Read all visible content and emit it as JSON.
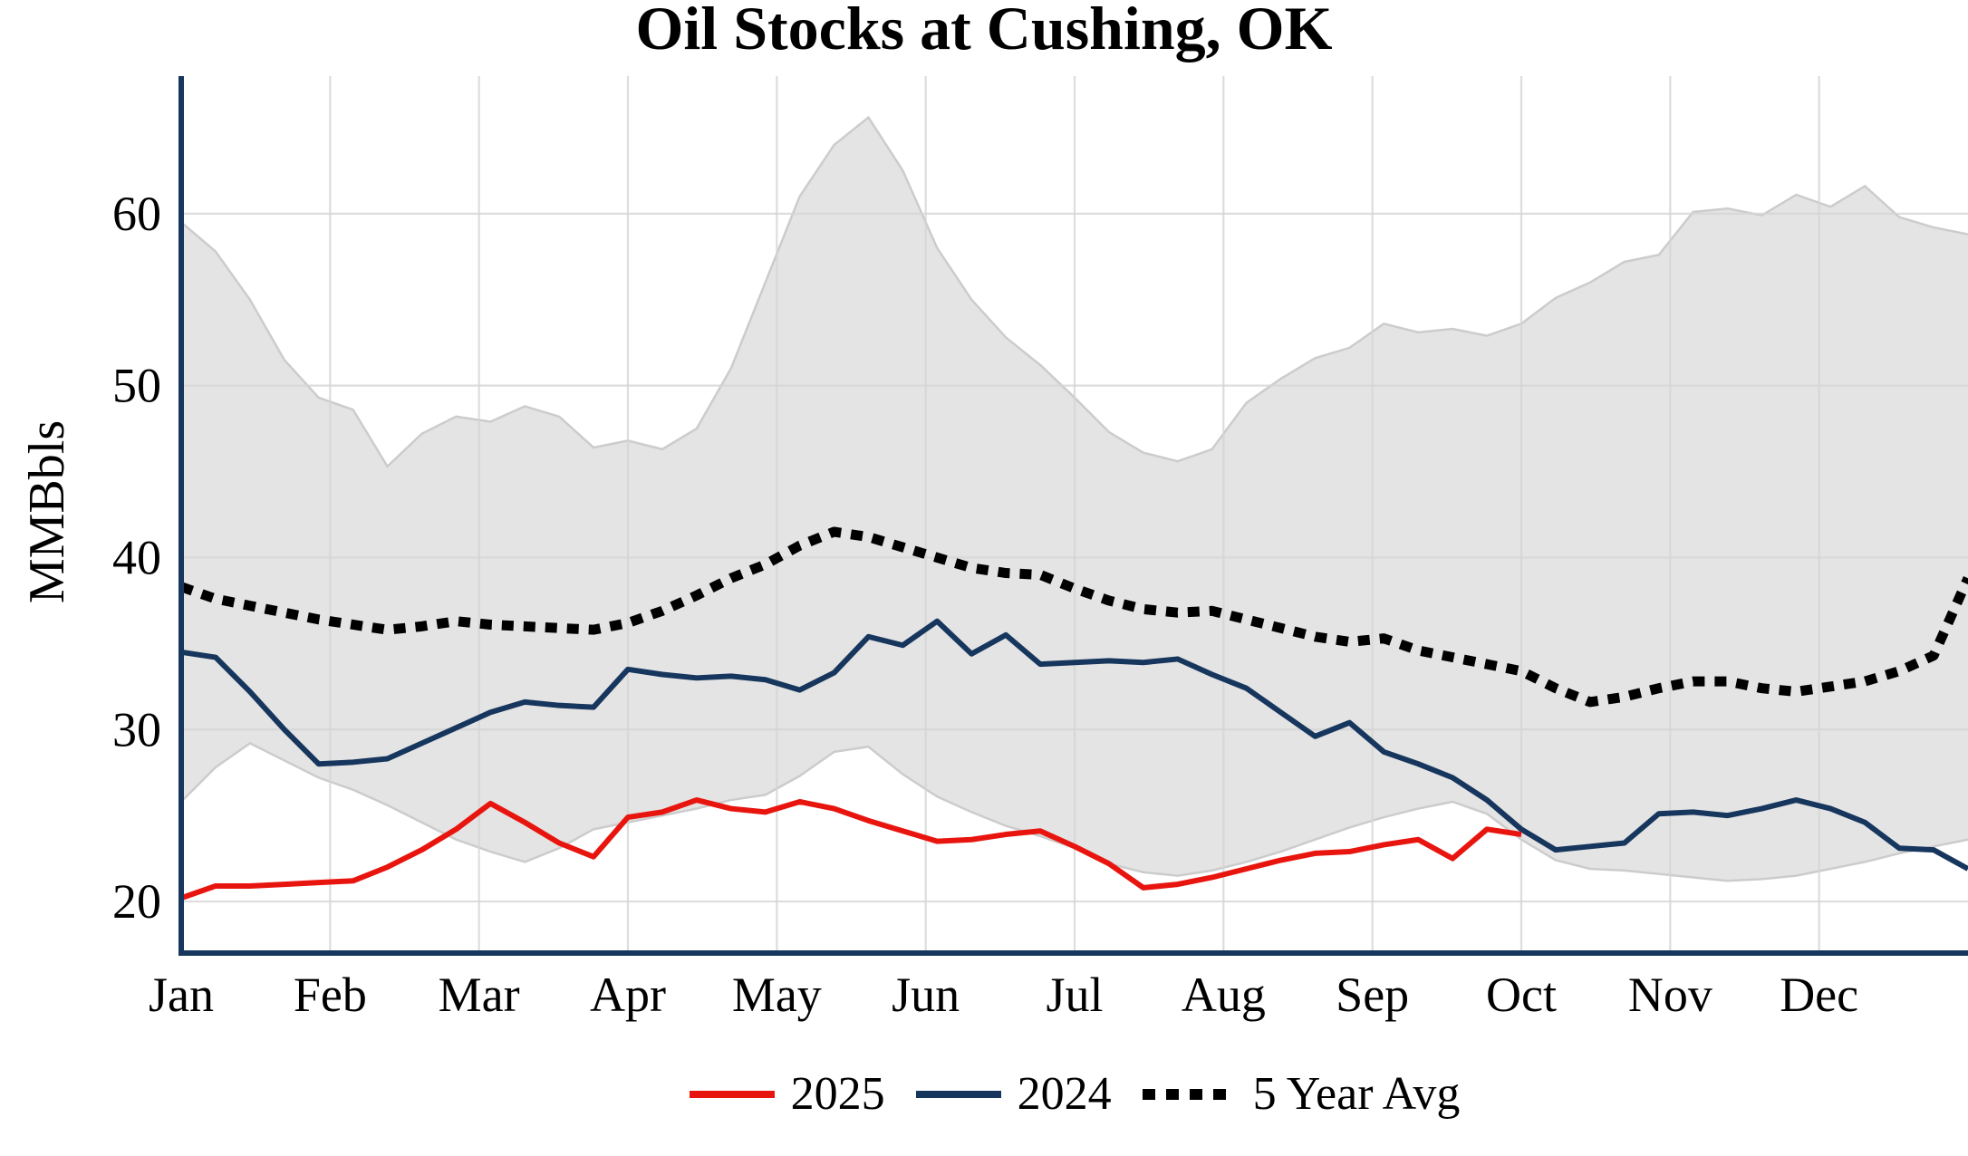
{
  "chart_data": {
    "type": "line",
    "title": "Oil Stocks at Cushing, OK",
    "ylabel": "MMBbls",
    "x_tick_labels": [
      "Jan",
      "Feb",
      "Mar",
      "Apr",
      "May",
      "Jun",
      "Jul",
      "Aug",
      "Sep",
      "Oct",
      "Nov",
      "Dec"
    ],
    "y_ticks": [
      20,
      30,
      40,
      50,
      60
    ],
    "ylim": [
      17,
      68
    ],
    "x_unit": "week",
    "weeks_per_year": 52,
    "grid": true,
    "legend_position": "bottom",
    "series": [
      {
        "name": "2025",
        "color": "#e8150f",
        "style": "solid",
        "start_week": 0,
        "values": [
          20.2,
          20.9,
          20.9,
          21.0,
          21.1,
          21.2,
          22.0,
          23.0,
          24.2,
          25.7,
          24.6,
          23.4,
          22.6,
          24.9,
          25.2,
          25.9,
          25.4,
          25.2,
          25.8,
          25.4,
          24.7,
          24.1,
          23.5,
          23.6,
          23.9,
          24.1,
          23.2,
          22.2,
          20.8,
          21.0,
          21.4,
          21.9,
          22.4,
          22.8,
          22.9,
          23.3,
          23.6,
          22.5,
          24.2,
          23.9
        ]
      },
      {
        "name": "2024",
        "color": "#17365d",
        "style": "solid",
        "start_week": 0,
        "values": [
          34.5,
          34.2,
          32.2,
          30.0,
          28.0,
          28.1,
          28.3,
          29.2,
          30.1,
          31.0,
          31.6,
          31.4,
          31.3,
          33.5,
          33.2,
          33.0,
          33.1,
          32.9,
          32.3,
          33.3,
          35.4,
          34.9,
          36.3,
          34.4,
          35.5,
          33.8,
          33.9,
          34.0,
          33.9,
          34.1,
          33.2,
          32.4,
          31.0,
          29.6,
          30.4,
          28.7,
          28.0,
          27.2,
          25.9,
          24.2,
          23.0,
          23.2,
          23.4,
          25.1,
          25.2,
          25.0,
          25.4,
          25.9,
          25.4,
          24.6,
          23.1,
          23.0,
          21.9
        ]
      },
      {
        "name": "5 Year Avg",
        "color": "#000000",
        "style": "dotted",
        "start_week": 0,
        "values": [
          38.3,
          37.6,
          37.2,
          36.8,
          36.4,
          36.1,
          35.8,
          36.0,
          36.3,
          36.1,
          36.0,
          35.9,
          35.8,
          36.2,
          36.9,
          37.8,
          38.8,
          39.6,
          40.7,
          41.5,
          41.2,
          40.6,
          40.0,
          39.4,
          39.1,
          39.0,
          38.2,
          37.5,
          37.0,
          36.8,
          36.9,
          36.4,
          35.9,
          35.4,
          35.1,
          35.3,
          34.6,
          34.2,
          33.8,
          33.4,
          32.4,
          31.6,
          31.9,
          32.4,
          32.8,
          32.8,
          32.4,
          32.2,
          32.5,
          32.8,
          33.4,
          34.3,
          38.8
        ]
      }
    ],
    "band": {
      "name": "5-year min-max range",
      "fill": "#e4e4e4",
      "edge": "#cccccc",
      "upper": [
        59.5,
        57.8,
        55.0,
        51.5,
        49.3,
        48.6,
        45.3,
        47.2,
        48.2,
        47.9,
        48.8,
        48.2,
        46.4,
        46.8,
        46.3,
        47.5,
        51.0,
        56.0,
        61.0,
        64.0,
        65.6,
        62.5,
        58.0,
        55.0,
        52.8,
        51.2,
        49.3,
        47.3,
        46.1,
        45.6,
        46.3,
        49.0,
        50.4,
        51.6,
        52.2,
        53.6,
        53.1,
        53.3,
        52.9,
        53.6,
        55.1,
        56.0,
        57.2,
        57.6,
        60.1,
        60.3,
        59.9,
        61.1,
        60.4,
        61.6,
        59.8,
        59.2,
        58.8
      ],
      "lower": [
        25.8,
        27.8,
        29.2,
        28.2,
        27.2,
        26.5,
        25.6,
        24.6,
        23.6,
        22.9,
        22.3,
        23.1,
        24.2,
        24.6,
        25.0,
        25.4,
        25.9,
        26.2,
        27.3,
        28.7,
        29.0,
        27.4,
        26.1,
        25.2,
        24.4,
        23.8,
        23.1,
        22.2,
        21.7,
        21.5,
        21.8,
        22.3,
        22.9,
        23.6,
        24.3,
        24.9,
        25.4,
        25.8,
        25.1,
        23.6,
        22.4,
        21.9,
        21.8,
        21.6,
        21.4,
        21.2,
        21.3,
        21.5,
        21.9,
        22.3,
        22.8,
        23.2,
        23.6
      ]
    }
  },
  "colors": {
    "axis": "#17365d",
    "grid": "#d4d4d4",
    "text": "#000000"
  }
}
